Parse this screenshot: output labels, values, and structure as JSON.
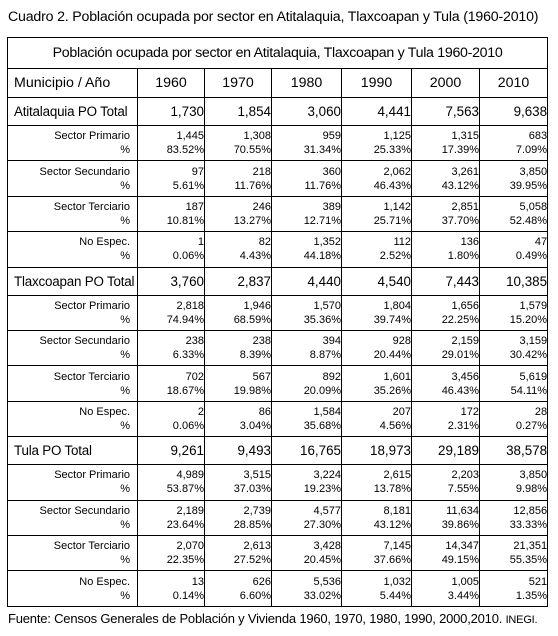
{
  "caption": "Cuadro 2. Población ocupada por sector en Atitalaquia, Tlaxcoapan y Tula (1960-2010)",
  "table": {
    "title": "Población ocupada por sector en Atitalaquia, Tlaxcoapan y Tula 1960-2010",
    "header_label": "Municipio / Año",
    "years": [
      "1960",
      "1970",
      "1980",
      "1990",
      "2000",
      "2010"
    ],
    "groups": [
      {
        "total_label": "Atitalaquia PO Total",
        "totals": [
          "1,730",
          "1,854",
          "3,060",
          "4,441",
          "7,563",
          "9,638"
        ],
        "sectors": [
          {
            "name": "Sector Primario",
            "pct_label": "%",
            "values": [
              "1,445",
              "1,308",
              "959",
              "1,125",
              "1,315",
              "683"
            ],
            "pcts": [
              "83.52%",
              "70.55%",
              "31.34%",
              "25.33%",
              "17.39%",
              "7.09%"
            ]
          },
          {
            "name": "Sector Secundario",
            "pct_label": "%",
            "values": [
              "97",
              "218",
              "360",
              "2,062",
              "3,261",
              "3,850"
            ],
            "pcts": [
              "5.61%",
              "11.76%",
              "11.76%",
              "46.43%",
              "43.12%",
              "39.95%"
            ]
          },
          {
            "name": "Sector Terciario",
            "pct_label": "%",
            "values": [
              "187",
              "246",
              "389",
              "1,142",
              "2,851",
              "5,058"
            ],
            "pcts": [
              "10.81%",
              "13.27%",
              "12.71%",
              "25.71%",
              "37.70%",
              "52.48%"
            ]
          },
          {
            "name": "No Espec.",
            "pct_label": "%",
            "values": [
              "1",
              "82",
              "1,352",
              "112",
              "136",
              "47"
            ],
            "pcts": [
              "0.06%",
              "4.43%",
              "44.18%",
              "2.52%",
              "1.80%",
              "0.49%"
            ]
          }
        ]
      },
      {
        "total_label": "Tlaxcoapan PO Total",
        "totals": [
          "3,760",
          "2,837",
          "4,440",
          "4,540",
          "7,443",
          "10,385"
        ],
        "sectors": [
          {
            "name": "Sector Primario",
            "pct_label": "%",
            "values": [
              "2,818",
              "1,946",
              "1,570",
              "1,804",
              "1,656",
              "1,579"
            ],
            "pcts": [
              "74.94%",
              "68.59%",
              "35.36%",
              "39.74%",
              "22.25%",
              "15.20%"
            ]
          },
          {
            "name": "Sector Secundario",
            "pct_label": "%",
            "values": [
              "238",
              "238",
              "394",
              "928",
              "2,159",
              "3,159"
            ],
            "pcts": [
              "6.33%",
              "8.39%",
              "8.87%",
              "20.44%",
              "29.01%",
              "30.42%"
            ]
          },
          {
            "name": "Sector Terciario",
            "pct_label": "%",
            "values": [
              "702",
              "567",
              "892",
              "1,601",
              "3,456",
              "5,619"
            ],
            "pcts": [
              "18.67%",
              "19.98%",
              "20.09%",
              "35.26%",
              "46.43%",
              "54.11%"
            ]
          },
          {
            "name": "No Espec.",
            "pct_label": "%",
            "values": [
              "2",
              "86",
              "1,584",
              "207",
              "172",
              "28"
            ],
            "pcts": [
              "0.06%",
              "3.04%",
              "35.68%",
              "4.56%",
              "2.31%",
              "0.27%"
            ]
          }
        ]
      },
      {
        "total_label": "Tula PO Total",
        "totals": [
          "9,261",
          "9,493",
          "16,765",
          "18,973",
          "29,189",
          "38,578"
        ],
        "sectors": [
          {
            "name": "Sector Primario",
            "pct_label": "%",
            "values": [
              "4,989",
              "3,515",
              "3,224",
              "2,615",
              "2,203",
              "3,850"
            ],
            "pcts": [
              "53.87%",
              "37.03%",
              "19.23%",
              "13.78%",
              "7.55%",
              "9.98%"
            ]
          },
          {
            "name": "Sector Secundario",
            "pct_label": "%",
            "values": [
              "2,189",
              "2,739",
              "4,577",
              "8,181",
              "11,634",
              "12,856"
            ],
            "pcts": [
              "23.64%",
              "28.85%",
              "27.30%",
              "43.12%",
              "39.86%",
              "33.33%"
            ]
          },
          {
            "name": "Sector Terciario",
            "pct_label": "%",
            "values": [
              "2,070",
              "2,613",
              "3,428",
              "7,145",
              "14,347",
              "21,351"
            ],
            "pcts": [
              "22.35%",
              "27.52%",
              "20.45%",
              "37.66%",
              "49.15%",
              "55.35%"
            ]
          },
          {
            "name": "No Espec.",
            "pct_label": "%",
            "values": [
              "13",
              "626",
              "5,536",
              "1,032",
              "1,005",
              "521"
            ],
            "pcts": [
              "0.14%",
              "6.60%",
              "33.02%",
              "5.44%",
              "3.44%",
              "1.35%"
            ]
          }
        ]
      }
    ]
  },
  "source": {
    "text": "Fuente: Censos Generales de Población y Vivienda 1960, 1970, 1980, 1990, 2000,2010.",
    "suffix": "INEGI."
  }
}
